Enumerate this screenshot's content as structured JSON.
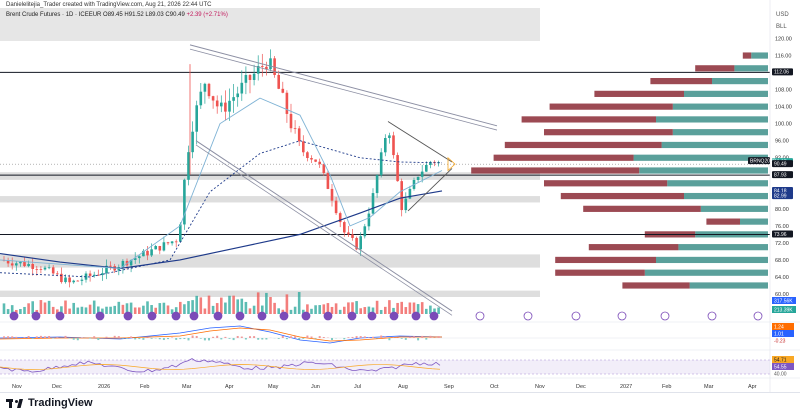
{
  "header": {
    "author_line": "Danielelitejia_Trader created with TradingView.com, Aug 21, 2026 22:44 UTC",
    "symbol": "Brent Crude Futures · 1D · ICEEUR",
    "ohlc": "O89.45 H91.52 L89.03 C90.49",
    "change": "+2.39 (+2.71%)"
  },
  "price_axis": {
    "unit": "USD",
    "currency": "BLL",
    "ticks": [
      "120.00",
      "116.00",
      "112.06",
      "108.00",
      "104.00",
      "100.00",
      "96.00",
      "92.00",
      "88.00",
      "84.00",
      "80.00",
      "76.00",
      "72.00",
      "68.00",
      "64.00",
      "60.00"
    ]
  },
  "badges": [
    {
      "label": "112.06",
      "value": 112.06,
      "bg": "#131722",
      "fg": "#ffffff"
    },
    {
      "label": "90.97",
      "value": 90.97,
      "bg": "#26a69a",
      "fg": "#ffffff"
    },
    {
      "label": "BRNQ2026",
      "value": 90.49,
      "bg": "#131722",
      "fg": "#ffffff",
      "wide": true
    },
    {
      "label": "90.49",
      "value": 90.49,
      "bg": "#131722",
      "fg": "#ffffff"
    },
    {
      "label": "87.93",
      "value": 87.93,
      "bg": "#131722",
      "fg": "#ffffff"
    },
    {
      "label": "84.18",
      "value": 84.18,
      "bg": "#1e3a8a",
      "fg": "#ffffff"
    },
    {
      "label": "82.99",
      "value": 82.99,
      "bg": "#1e3a8a",
      "fg": "#ffffff"
    },
    {
      "label": "73.96",
      "value": 73.96,
      "bg": "#131722",
      "fg": "#ffffff"
    }
  ],
  "volume_badges": [
    "317.56K",
    "213.39K"
  ],
  "macd_badges": [
    "1.24",
    "1.01",
    "-0.23"
  ],
  "rsi_badges": [
    "54.71",
    "54.55",
    "40.00"
  ],
  "time_axis": [
    "Nov",
    "Dec",
    "2026",
    "Feb",
    "Mar",
    "Apr",
    "May",
    "Jun",
    "Jul",
    "Aug",
    "Sep",
    "Oct",
    "Nov",
    "Dec",
    "2027",
    "Feb",
    "Mar",
    "Apr"
  ],
  "footer": {
    "brand": "TradingView"
  },
  "colors": {
    "up": "#26a69a",
    "down": "#ef5350",
    "resistance": "#131722",
    "ma_dark": "#1e3a8a",
    "ma_light": "#7fb3d5"
  },
  "chart_data": {
    "type": "candlestick",
    "ylim": [
      60,
      122
    ],
    "key_levels": [
      112.06,
      87.93,
      73.96
    ],
    "zones": [
      [
        86.8,
        88.6
      ],
      [
        81.5,
        83.0
      ],
      [
        66.2,
        69.3
      ],
      [
        59.3,
        60.8
      ]
    ],
    "volume_profile": [
      {
        "price": 116,
        "buy": 0.6,
        "sell": 0.3
      },
      {
        "price": 113,
        "buy": 1.2,
        "sell": 1.4
      },
      {
        "price": 110,
        "buy": 2.0,
        "sell": 2.2
      },
      {
        "price": 107,
        "buy": 3.0,
        "sell": 3.2
      },
      {
        "price": 104,
        "buy": 3.4,
        "sell": 4.4
      },
      {
        "price": 101,
        "buy": 4.0,
        "sell": 4.8
      },
      {
        "price": 98,
        "buy": 3.4,
        "sell": 4.6
      },
      {
        "price": 95,
        "buy": 3.8,
        "sell": 5.6
      },
      {
        "price": 92,
        "buy": 4.8,
        "sell": 5.0
      },
      {
        "price": 89,
        "buy": 4.6,
        "sell": 6.0
      },
      {
        "price": 86,
        "buy": 3.6,
        "sell": 4.4
      },
      {
        "price": 83,
        "buy": 3.0,
        "sell": 4.4
      },
      {
        "price": 80,
        "buy": 2.4,
        "sell": 4.2
      },
      {
        "price": 77,
        "buy": 1.0,
        "sell": 1.2
      },
      {
        "price": 74,
        "buy": 2.6,
        "sell": 1.8
      },
      {
        "price": 71,
        "buy": 3.2,
        "sell": 3.2
      },
      {
        "price": 68,
        "buy": 4.0,
        "sell": 3.6
      },
      {
        "price": 65,
        "buy": 4.4,
        "sell": 3.2
      },
      {
        "price": 62,
        "buy": 2.8,
        "sell": 2.4
      }
    ]
  }
}
